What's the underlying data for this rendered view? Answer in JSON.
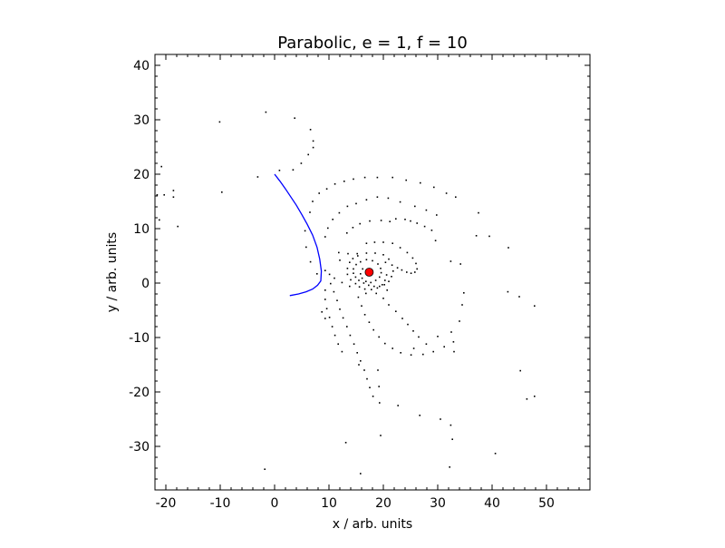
{
  "chart_data": {
    "type": "scatter",
    "title": "Parabolic, e = 1, f = 10",
    "xlabel": "x / arb. units",
    "ylabel": "y / arb. units",
    "xlim": [
      -22,
      58
    ],
    "ylim": [
      -38,
      42
    ],
    "xticks": [
      "-20",
      "-10",
      "0",
      "10",
      "20",
      "30",
      "40",
      "50"
    ],
    "yticks": [
      "-30",
      "-20",
      "-10",
      "0",
      "10",
      "20",
      "30",
      "40"
    ],
    "xtick_values": [
      -20,
      -10,
      0,
      10,
      20,
      30,
      40,
      50
    ],
    "ytick_values": [
      -30,
      -20,
      -10,
      0,
      10,
      20,
      30,
      40
    ],
    "grid": false,
    "colors": {
      "curve": "#0000ff",
      "focus": "#ff0000",
      "points": "#000000"
    },
    "focus": {
      "x": 17.4,
      "y": 2.0
    },
    "curve": [
      [
        0.0,
        20.0
      ],
      [
        1.0,
        18.7
      ],
      [
        2.0,
        17.3
      ],
      [
        3.0,
        15.8
      ],
      [
        4.0,
        14.3
      ],
      [
        5.0,
        12.6
      ],
      [
        6.0,
        10.8
      ],
      [
        7.0,
        8.8
      ],
      [
        7.8,
        6.6
      ],
      [
        8.3,
        4.4
      ],
      [
        8.6,
        2.2
      ],
      [
        8.5,
        0.4
      ],
      [
        7.9,
        -0.4
      ],
      [
        7.0,
        -1.1
      ],
      [
        5.8,
        -1.6
      ],
      [
        4.4,
        -2.0
      ],
      [
        2.8,
        -2.3
      ]
    ],
    "points": [
      [
        -20.8,
        21.4
      ],
      [
        -21.6,
        16.2
      ],
      [
        -20.3,
        16.2
      ],
      [
        -18.6,
        17.0
      ],
      [
        -18.6,
        15.8
      ],
      [
        -17.8,
        10.4
      ],
      [
        -21.2,
        11.6
      ],
      [
        -10.1,
        29.6
      ],
      [
        -9.7,
        16.7
      ],
      [
        -1.6,
        31.4
      ],
      [
        3.7,
        30.3
      ],
      [
        6.6,
        28.2
      ],
      [
        7.1,
        26.1
      ],
      [
        7.1,
        24.9
      ],
      [
        6.2,
        23.6
      ],
      [
        4.9,
        22.0
      ],
      [
        3.4,
        20.8
      ],
      [
        0.9,
        20.7
      ],
      [
        -3.1,
        19.5
      ],
      [
        6.5,
        13.0
      ],
      [
        5.6,
        9.6
      ],
      [
        5.8,
        6.6
      ],
      [
        6.6,
        3.9
      ],
      [
        7.8,
        1.7
      ],
      [
        7.0,
        15.0
      ],
      [
        8.2,
        16.5
      ],
      [
        9.6,
        17.3
      ],
      [
        11.1,
        18.2
      ],
      [
        12.8,
        18.7
      ],
      [
        14.5,
        19.1
      ],
      [
        16.6,
        19.4
      ],
      [
        18.9,
        19.4
      ],
      [
        21.7,
        19.4
      ],
      [
        24.2,
        18.9
      ],
      [
        26.8,
        18.4
      ],
      [
        29.3,
        17.6
      ],
      [
        31.6,
        16.5
      ],
      [
        33.3,
        15.8
      ],
      [
        9.3,
        8.5
      ],
      [
        9.8,
        10.1
      ],
      [
        10.7,
        11.7
      ],
      [
        11.9,
        12.9
      ],
      [
        13.4,
        14.1
      ],
      [
        15.0,
        14.6
      ],
      [
        16.9,
        15.3
      ],
      [
        18.9,
        15.8
      ],
      [
        20.9,
        15.6
      ],
      [
        23.1,
        14.9
      ],
      [
        25.8,
        14.1
      ],
      [
        27.9,
        13.4
      ],
      [
        29.8,
        12.5
      ],
      [
        22.3,
        11.8
      ],
      [
        24.0,
        11.7
      ],
      [
        25.0,
        11.4
      ],
      [
        26.2,
        11.0
      ],
      [
        27.6,
        10.4
      ],
      [
        28.9,
        9.7
      ],
      [
        29.6,
        7.8
      ],
      [
        13.3,
        9.2
      ],
      [
        14.4,
        10.2
      ],
      [
        15.7,
        10.9
      ],
      [
        17.5,
        11.4
      ],
      [
        19.6,
        11.5
      ],
      [
        21.2,
        11.3
      ],
      [
        16.9,
        7.3
      ],
      [
        18.4,
        7.5
      ],
      [
        20.0,
        7.5
      ],
      [
        21.7,
        7.3
      ],
      [
        23.1,
        6.5
      ],
      [
        24.4,
        5.6
      ],
      [
        25.4,
        4.6
      ],
      [
        26.0,
        3.6
      ],
      [
        26.2,
        2.6
      ],
      [
        25.8,
        2.0
      ],
      [
        25.1,
        1.8
      ],
      [
        24.3,
        2.0
      ],
      [
        23.4,
        2.4
      ],
      [
        22.6,
        2.8
      ],
      [
        11.8,
        5.6
      ],
      [
        13.5,
        5.4
      ],
      [
        15.2,
        5.4
      ],
      [
        16.9,
        5.5
      ],
      [
        18.5,
        5.5
      ],
      [
        20.0,
        5.2
      ],
      [
        21.0,
        4.4
      ],
      [
        21.6,
        3.3
      ],
      [
        21.8,
        2.2
      ],
      [
        21.5,
        1.2
      ],
      [
        21.0,
        0.3
      ],
      [
        20.2,
        -0.3
      ],
      [
        19.3,
        -0.6
      ],
      [
        18.3,
        -0.6
      ],
      [
        17.3,
        -0.4
      ],
      [
        16.4,
        0.0
      ],
      [
        15.5,
        0.5
      ],
      [
        14.9,
        1.1
      ],
      [
        14.5,
        1.8
      ],
      [
        14.5,
        2.6
      ],
      [
        15.0,
        3.4
      ],
      [
        15.8,
        3.9
      ],
      [
        16.9,
        4.3
      ],
      [
        18.0,
        4.1
      ],
      [
        19.0,
        3.5
      ],
      [
        19.5,
        2.7
      ],
      [
        19.6,
        1.9
      ],
      [
        19.3,
        1.1
      ],
      [
        18.6,
        0.5
      ],
      [
        17.7,
        0.1
      ],
      [
        16.8,
        0.3
      ],
      [
        16.1,
        0.9
      ],
      [
        15.8,
        1.7
      ],
      [
        16.2,
        2.6
      ],
      [
        20.4,
        3.8
      ],
      [
        20.6,
        1.5
      ],
      [
        20.3,
        0.5
      ],
      [
        19.8,
        -0.3
      ],
      [
        18.9,
        -0.9
      ],
      [
        17.8,
        -1.2
      ],
      [
        16.6,
        -1.1
      ],
      [
        15.6,
        -0.7
      ],
      [
        14.9,
        -0.1
      ],
      [
        14.0,
        0.6
      ],
      [
        13.4,
        1.6
      ],
      [
        13.4,
        2.7
      ],
      [
        13.8,
        3.8
      ],
      [
        14.4,
        4.5
      ],
      [
        15.3,
        5.0
      ],
      [
        9.3,
        2.3
      ],
      [
        10.1,
        1.6
      ],
      [
        11.0,
        0.9
      ],
      [
        12.4,
        0.1
      ],
      [
        13.8,
        -0.6
      ],
      [
        12.0,
        4.2
      ],
      [
        16.8,
        -1.9
      ],
      [
        18.7,
        -1.9
      ],
      [
        20.7,
        -1.3
      ],
      [
        10.3,
        -0.1
      ],
      [
        10.9,
        -1.6
      ],
      [
        11.5,
        -3.2
      ],
      [
        12.0,
        -4.8
      ],
      [
        12.6,
        -6.4
      ],
      [
        13.3,
        -8.0
      ],
      [
        13.9,
        -9.6
      ],
      [
        14.6,
        -11.2
      ],
      [
        15.2,
        -12.8
      ],
      [
        15.8,
        -14.3
      ],
      [
        16.5,
        -16.0
      ],
      [
        17.0,
        -17.6
      ],
      [
        17.5,
        -19.2
      ],
      [
        18.1,
        -20.8
      ],
      [
        9.3,
        -1.3
      ],
      [
        9.3,
        -3.0
      ],
      [
        9.6,
        -4.7
      ],
      [
        10.1,
        -6.3
      ],
      [
        10.6,
        -8.0
      ],
      [
        11.1,
        -9.6
      ],
      [
        11.7,
        -11.2
      ],
      [
        12.4,
        -12.6
      ],
      [
        15.5,
        -15.0
      ],
      [
        19.0,
        -16.0
      ],
      [
        19.2,
        -19.0
      ],
      [
        19.3,
        -22.0
      ],
      [
        9.3,
        -6.5
      ],
      [
        8.7,
        -5.3
      ],
      [
        15.4,
        -2.6
      ],
      [
        16.0,
        -4.2
      ],
      [
        16.6,
        -5.8
      ],
      [
        17.4,
        -7.2
      ],
      [
        18.2,
        -8.6
      ],
      [
        19.2,
        -9.9
      ],
      [
        20.3,
        -11.1
      ],
      [
        21.7,
        -12.0
      ],
      [
        23.2,
        -12.8
      ],
      [
        25.1,
        -13.2
      ],
      [
        27.3,
        -13.1
      ],
      [
        29.2,
        -12.6
      ],
      [
        31.2,
        -11.7
      ],
      [
        32.9,
        -10.8
      ],
      [
        20.0,
        -2.8
      ],
      [
        21.0,
        -4.0
      ],
      [
        22.3,
        -5.2
      ],
      [
        23.5,
        -6.5
      ],
      [
        24.5,
        -7.6
      ],
      [
        25.5,
        -8.8
      ],
      [
        26.5,
        -9.9
      ],
      [
        27.9,
        -11.2
      ],
      [
        30.0,
        -9.8
      ],
      [
        32.5,
        -9.0
      ],
      [
        33.0,
        -12.6
      ],
      [
        34.0,
        -7.0
      ],
      [
        34.5,
        -4.0
      ],
      [
        34.2,
        3.5
      ],
      [
        34.8,
        -1.8
      ],
      [
        37.1,
        8.7
      ],
      [
        37.5,
        12.9
      ],
      [
        39.5,
        8.6
      ],
      [
        43.0,
        6.5
      ],
      [
        42.9,
        -1.6
      ],
      [
        45.0,
        -2.5
      ],
      [
        47.8,
        -4.2
      ],
      [
        45.2,
        -16.1
      ],
      [
        46.4,
        -21.3
      ],
      [
        47.8,
        -20.8
      ],
      [
        26.7,
        -24.3
      ],
      [
        30.5,
        -25.0
      ],
      [
        32.4,
        -26.1
      ],
      [
        32.7,
        -28.7
      ],
      [
        22.7,
        -22.5
      ],
      [
        13.1,
        -29.3
      ],
      [
        19.5,
        -28.0
      ],
      [
        32.2,
        -33.8
      ],
      [
        40.6,
        -31.3
      ],
      [
        -1.8,
        -34.2
      ],
      [
        15.8,
        -35.0
      ],
      [
        25.6,
        -12.0
      ],
      [
        32.4,
        4.0
      ]
    ]
  }
}
